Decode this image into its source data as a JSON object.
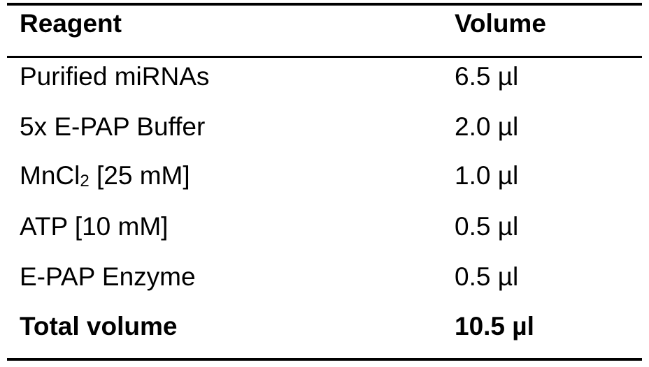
{
  "table": {
    "headers": {
      "reagent": "Reagent",
      "volume": "Volume"
    },
    "rows": [
      {
        "reagent": "Purified miRNAs",
        "volume": "6.5 µl"
      },
      {
        "reagent": "5x E-PAP Buffer",
        "volume": "2.0 µl"
      },
      {
        "reagent_main": "MnCl",
        "reagent_sub": "2",
        "reagent_tail": " [25 mM]",
        "volume": "1.0 µl"
      },
      {
        "reagent": "ATP [10 mM]",
        "volume": "0.5 µl"
      },
      {
        "reagent": "E-PAP Enzyme",
        "volume": "0.5 µl"
      }
    ],
    "total": {
      "reagent": "Total volume",
      "volume": "10.5 µl"
    }
  }
}
